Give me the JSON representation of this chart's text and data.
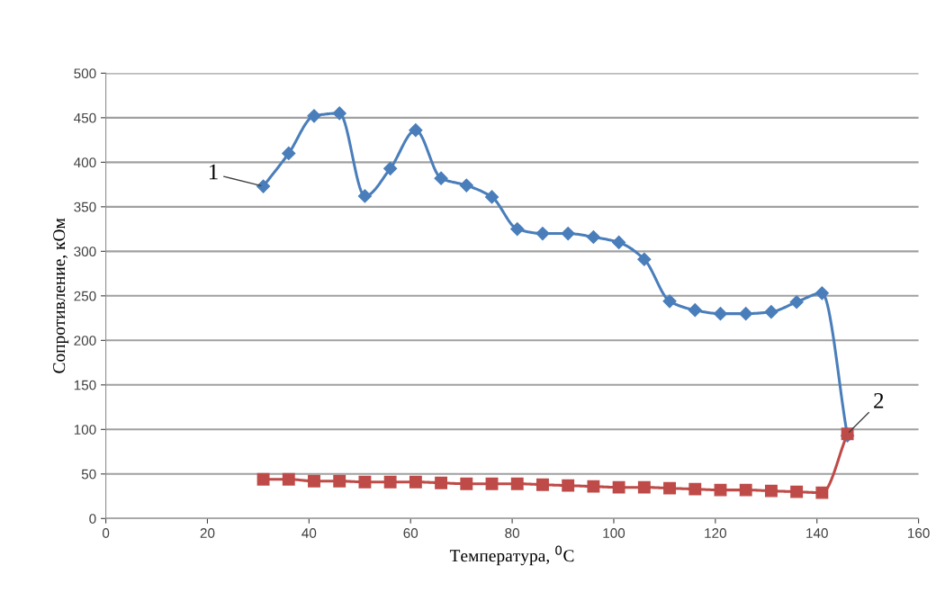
{
  "chart_data": {
    "type": "line",
    "xlabel": "Температура, $^{0}$С",
    "ylabel": "Сопротивление, кОм",
    "xlim": [
      0,
      160
    ],
    "xticks": [
      0,
      20,
      40,
      60,
      80,
      100,
      120,
      140,
      160
    ],
    "ylim": [
      0,
      500
    ],
    "yticks": [
      0,
      50,
      100,
      150,
      200,
      250,
      300,
      350,
      400,
      450,
      500
    ],
    "grid": "y",
    "legend": false,
    "line_style": "solid",
    "x": [
      31,
      36,
      41,
      46,
      51,
      56,
      61,
      66,
      71,
      76,
      81,
      86,
      91,
      96,
      101,
      106,
      111,
      116,
      121,
      126,
      131,
      136,
      141,
      146
    ],
    "series": [
      {
        "color": "#4a7ebb",
        "marker": "diamond",
        "values": [
          373,
          410,
          452,
          455,
          362,
          393,
          436,
          382,
          374,
          361,
          325,
          320,
          320,
          316,
          310,
          291,
          244,
          234,
          230,
          230,
          232,
          243,
          253,
          93
        ]
      },
      {
        "color": "#be4b48",
        "marker": "square",
        "values": [
          44,
          44,
          42,
          42,
          41,
          41,
          41,
          40,
          39,
          39,
          39,
          38,
          37,
          36,
          35,
          35,
          34,
          33,
          32,
          32,
          31,
          30,
          29,
          95
        ]
      }
    ],
    "annotations": [
      {
        "text": "1",
        "x": 31,
        "y": 373
      },
      {
        "text": "2",
        "x": 146,
        "y": 95
      }
    ]
  }
}
